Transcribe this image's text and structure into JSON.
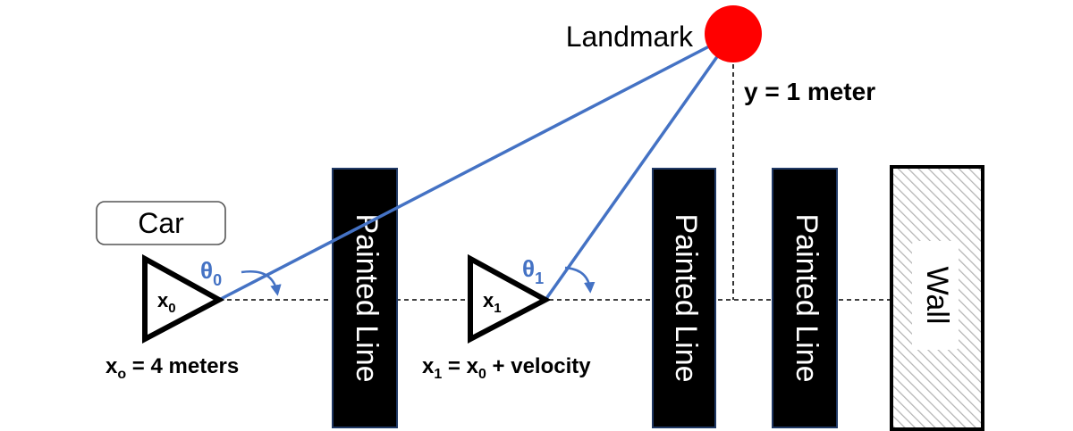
{
  "landmark": {
    "label": "Landmark",
    "color": "#ff0000",
    "height_label": "y = 1 meter"
  },
  "car": {
    "label": "Car"
  },
  "pose0": {
    "symbol": "x",
    "subscript": "0",
    "angle_symbol": "θ",
    "angle_subscript": "0",
    "caption_prefix": "x",
    "caption_subscript": "o",
    "caption_suffix": " = 4 meters"
  },
  "pose1": {
    "symbol": "x",
    "subscript": "1",
    "angle_symbol": "θ",
    "angle_subscript": "1",
    "caption_prefix": "x",
    "caption_sub1": "1",
    "caption_middle": " = x",
    "caption_sub2": "0",
    "caption_suffix": " + velocity"
  },
  "painted_lines": [
    {
      "label": "Painted Line"
    },
    {
      "label": "Painted Line"
    },
    {
      "label": "Painted Line"
    }
  ],
  "wall": {
    "label": "Wall"
  },
  "colors": {
    "ray": "#4472c4",
    "angle_text": "#4472c4",
    "line_fill": "#000000",
    "line_border": "#1f3864"
  }
}
